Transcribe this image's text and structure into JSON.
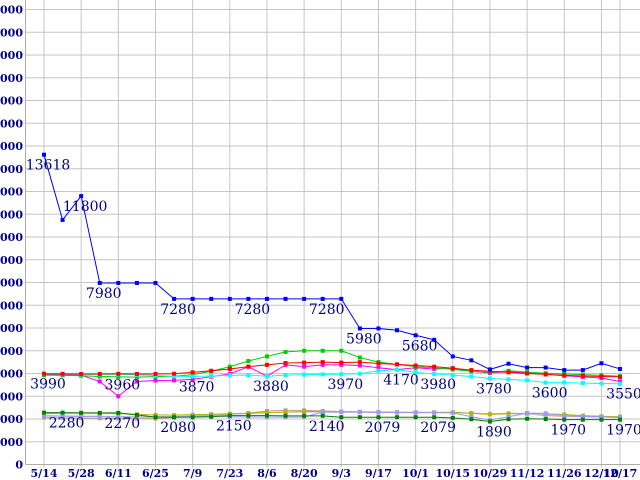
{
  "chart_data": {
    "type": "line",
    "title": "",
    "xlabel": "",
    "ylabel": "",
    "grid": true,
    "legend": "none",
    "y_axis": {
      "min": 0,
      "max": 20000,
      "step": 1000
    },
    "x": [
      "5/14",
      "5/21",
      "5/28",
      "6/4",
      "6/11",
      "6/18",
      "6/25",
      "7/2",
      "7/9",
      "7/16",
      "7/23",
      "7/30",
      "8/6",
      "8/13",
      "8/20",
      "8/27",
      "9/3",
      "9/10",
      "9/17",
      "9/24",
      "10/1",
      "10/8",
      "10/15",
      "10/22",
      "10/29",
      "11/5",
      "11/12",
      "11/19",
      "11/26",
      "12/3",
      "12/10",
      "12/17"
    ],
    "x_tick_labels": [
      "5/14",
      "5/28",
      "6/11",
      "6/25",
      "7/9",
      "7/23",
      "8/6",
      "8/20",
      "9/3",
      "9/17",
      "10/1",
      "10/15",
      "10/29",
      "11/12",
      "11/26",
      "12/10",
      "12/17"
    ],
    "x_tick_indices": [
      0,
      2,
      4,
      6,
      8,
      10,
      12,
      14,
      16,
      18,
      20,
      22,
      24,
      26,
      28,
      30,
      31
    ],
    "series": [
      {
        "name": "tan",
        "color": "#C49882",
        "values": [
          2060,
          2050,
          2040,
          2030,
          2020,
          2010,
          2020,
          2060,
          2120,
          2160,
          2200,
          2260,
          2350,
          2380,
          2380,
          2350,
          2330,
          2320,
          2310,
          2300,
          2290,
          2290,
          2290,
          2260,
          2230,
          2250,
          2230,
          2150,
          2120,
          2100,
          2090,
          2080
        ]
      },
      {
        "name": "silver",
        "color": "#C0C0C0",
        "values": [
          2150,
          2140,
          2130,
          2120,
          2110,
          2100,
          2100,
          2110,
          2140,
          2180,
          2210,
          2240,
          2280,
          2300,
          2310,
          2310,
          2300,
          2300,
          2290,
          2290,
          2280,
          2280,
          2280,
          2250,
          2220,
          2240,
          2220,
          2180,
          2150,
          2130,
          2110,
          2100
        ]
      },
      {
        "name": "olive",
        "color": "#B2B200",
        "values": [
          2230,
          2250,
          2260,
          2250,
          2240,
          2200,
          2180,
          2170,
          2190,
          2210,
          2230,
          2250,
          2280,
          2300,
          2330,
          2330,
          2320,
          2310,
          2300,
          2290,
          2290,
          2290,
          2290,
          2250,
          2200,
          2230,
          2250,
          2230,
          2200,
          2150,
          2120,
          2100
        ]
      },
      {
        "name": "periwinkle",
        "color": "#9999FF",
        "values": [
          2130,
          2120,
          2110,
          2100,
          2090,
          2080,
          2080,
          2090,
          2120,
          2140,
          2100,
          2090,
          2080,
          2080,
          2090,
          2300,
          2310,
          2300,
          2290,
          2280,
          2280,
          2280,
          2270,
          2100,
          1950,
          2100,
          2260,
          2250,
          2150,
          2120,
          2100,
          2060
        ]
      },
      {
        "name": "dark-green",
        "color": "#008000",
        "values": [
          2280,
          2280,
          2270,
          2270,
          2270,
          2180,
          2080,
          2080,
          2080,
          2100,
          2150,
          2150,
          2150,
          2140,
          2140,
          2140,
          2079,
          2079,
          2079,
          2079,
          2079,
          2079,
          2050,
          1990,
          1890,
          1990,
          2010,
          2000,
          1970,
          1970,
          1970,
          1970
        ]
      },
      {
        "name": "magenta",
        "color": "#FF00FF",
        "values": [
          3950,
          3940,
          3930,
          3650,
          3000,
          3650,
          3690,
          3700,
          3740,
          3860,
          3980,
          4300,
          3880,
          4380,
          4300,
          4380,
          4380,
          4350,
          4250,
          4170,
          4250,
          4200,
          4230,
          4100,
          4020,
          4080,
          4030,
          3960,
          3900,
          3850,
          3800,
          3650
        ]
      },
      {
        "name": "green",
        "color": "#00CC00",
        "values": [
          3930,
          3920,
          3900,
          3870,
          3850,
          3840,
          3860,
          3880,
          3950,
          4100,
          4300,
          4550,
          4750,
          4950,
          5000,
          5000,
          5000,
          4700,
          4500,
          4400,
          4300,
          4250,
          4180,
          4100,
          4050,
          4120,
          4060,
          4010,
          3980,
          3950,
          3920,
          3880
        ]
      },
      {
        "name": "cyan",
        "color": "#00FFFF",
        "values": [
          3990,
          3975,
          3960,
          3960,
          3960,
          3940,
          3910,
          3880,
          3870,
          3890,
          3920,
          3930,
          3880,
          3930,
          3950,
          3960,
          3970,
          3990,
          4120,
          4170,
          4050,
          3980,
          3930,
          3870,
          3780,
          3740,
          3700,
          3600,
          3600,
          3580,
          3560,
          3550
        ]
      },
      {
        "name": "red",
        "color": "#FF0000",
        "values": [
          3990,
          3985,
          3980,
          3980,
          3985,
          3980,
          3980,
          3990,
          4050,
          4120,
          4200,
          4300,
          4380,
          4460,
          4480,
          4500,
          4480,
          4500,
          4440,
          4400,
          4350,
          4300,
          4230,
          4150,
          4100,
          4050,
          4000,
          3960,
          3920,
          3890,
          3870,
          3850
        ]
      },
      {
        "name": "blue",
        "color": "#0000FF",
        "values": [
          13618,
          10750,
          11800,
          7980,
          7980,
          7980,
          7980,
          7280,
          7280,
          7280,
          7280,
          7280,
          7280,
          7280,
          7280,
          7280,
          7280,
          5980,
          5980,
          5900,
          5680,
          5480,
          4750,
          4580,
          4180,
          4430,
          4260,
          4260,
          4150,
          4150,
          4450,
          4200
        ]
      }
    ],
    "point_labels": [
      {
        "series": "blue",
        "index": 0,
        "text": "13618"
      },
      {
        "series": "blue",
        "index": 2,
        "text": "11800"
      },
      {
        "series": "blue",
        "index": 3,
        "text": "7980"
      },
      {
        "series": "blue",
        "index": 7,
        "text": "7280"
      },
      {
        "series": "blue",
        "index": 11,
        "text": "7280"
      },
      {
        "series": "blue",
        "index": 15,
        "text": "7280"
      },
      {
        "series": "blue",
        "index": 17,
        "text": "5980"
      },
      {
        "series": "blue",
        "index": 20,
        "text": "5680"
      },
      {
        "series": "cyan",
        "index": 0,
        "text": "3990"
      },
      {
        "series": "cyan",
        "index": 4,
        "text": "3960"
      },
      {
        "series": "cyan",
        "index": 8,
        "text": "3870"
      },
      {
        "series": "cyan",
        "index": 12,
        "text": "3880"
      },
      {
        "series": "cyan",
        "index": 16,
        "text": "3970"
      },
      {
        "series": "cyan",
        "index": 19,
        "text": "4170"
      },
      {
        "series": "cyan",
        "index": 21,
        "text": "3980"
      },
      {
        "series": "cyan",
        "index": 24,
        "text": "3780"
      },
      {
        "series": "cyan",
        "index": 27,
        "text": "3600"
      },
      {
        "series": "cyan",
        "index": 31,
        "text": "3550"
      },
      {
        "series": "dark-green",
        "index": 1,
        "text": "2280"
      },
      {
        "series": "dark-green",
        "index": 4,
        "text": "2270"
      },
      {
        "series": "dark-green",
        "index": 7,
        "text": "2080"
      },
      {
        "series": "dark-green",
        "index": 10,
        "text": "2150"
      },
      {
        "series": "dark-green",
        "index": 15,
        "text": "2140"
      },
      {
        "series": "dark-green",
        "index": 18,
        "text": "2079"
      },
      {
        "series": "dark-green",
        "index": 21,
        "text": "2079"
      },
      {
        "series": "dark-green",
        "index": 24,
        "text": "1890"
      },
      {
        "series": "dark-green",
        "index": 28,
        "text": "1970"
      },
      {
        "series": "dark-green",
        "index": 31,
        "text": "1970"
      }
    ],
    "colors": {
      "background": "#FFFFFF",
      "grid": "#C6C6C6",
      "axis": "#ACACAC",
      "tick_label": "#000080",
      "point_label": "#000080"
    }
  }
}
